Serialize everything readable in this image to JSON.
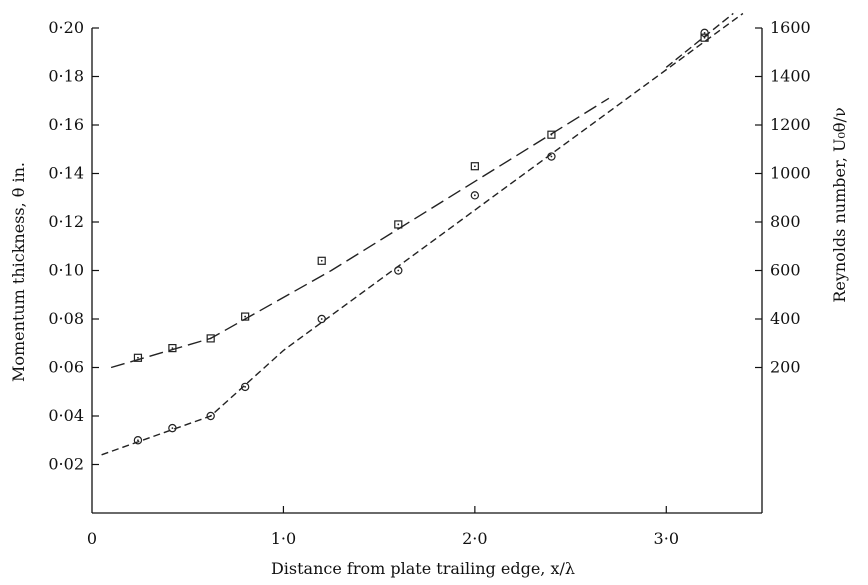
{
  "chart_data": {
    "type": "scatter",
    "title": "",
    "xlabel": "Distance from plate trailing edge, x/λ",
    "ylabel_left": "Momentum thickness, θ in.",
    "ylabel_right": "Reynolds number, U₀θ/ν",
    "xlim": [
      0,
      3.5
    ],
    "ylim": [
      0,
      0.2
    ],
    "ylim_right": [
      -400,
      1600
    ],
    "x_ticks": [
      {
        "value": 0,
        "label": "0"
      },
      {
        "value": 1.0,
        "label": "1·0"
      },
      {
        "value": 2.0,
        "label": "2·0"
      },
      {
        "value": 3.0,
        "label": "3·0"
      }
    ],
    "y_left_ticks": [
      {
        "value": 0.02,
        "label": "0·02"
      },
      {
        "value": 0.04,
        "label": "0·04"
      },
      {
        "value": 0.06,
        "label": "0·06"
      },
      {
        "value": 0.08,
        "label": "0·08"
      },
      {
        "value": 0.1,
        "label": "0·10"
      },
      {
        "value": 0.12,
        "label": "0·12"
      },
      {
        "value": 0.14,
        "label": "0·14"
      },
      {
        "value": 0.16,
        "label": "0·16"
      },
      {
        "value": 0.18,
        "label": "0·18"
      },
      {
        "value": 0.2,
        "label": "0·20"
      }
    ],
    "y_right_ticks": [
      {
        "value": 200,
        "label": "200"
      },
      {
        "value": 400,
        "label": "400"
      },
      {
        "value": 600,
        "label": "600"
      },
      {
        "value": 800,
        "label": "800"
      },
      {
        "value": 1000,
        "label": "1000"
      },
      {
        "value": 1200,
        "label": "1200"
      },
      {
        "value": 1400,
        "label": "1400"
      },
      {
        "value": 1600,
        "label": "1600"
      }
    ],
    "series": [
      {
        "marker": "square",
        "axis": "left",
        "x": [
          0.24,
          0.42,
          0.62,
          0.8,
          1.2,
          1.6,
          2.0,
          2.4,
          3.2
        ],
        "y": [
          0.064,
          0.068,
          0.072,
          0.081,
          0.104,
          0.119,
          0.143,
          0.156,
          0.196
        ],
        "fit_line": [
          [
            0.1,
            0.06
          ],
          [
            0.62,
            0.072
          ],
          [
            1.25,
            0.1
          ],
          [
            2.7,
            0.171
          ]
        ]
      },
      {
        "marker": "circle",
        "axis": "left",
        "x": [
          0.24,
          0.42,
          0.62,
          0.8,
          1.2,
          1.6,
          2.0,
          2.4,
          3.2
        ],
        "y": [
          0.03,
          0.035,
          0.04,
          0.052,
          0.08,
          0.1,
          0.131,
          0.147,
          0.198
        ],
        "fit_line": [
          [
            0.05,
            0.024
          ],
          [
            0.62,
            0.04
          ],
          [
            1.0,
            0.067
          ],
          [
            3.4,
            0.206
          ]
        ]
      }
    ],
    "extra_dashed_segment": [
      [
        3.0,
        0.1838
      ],
      [
        3.35,
        0.206
      ]
    ],
    "grid": false,
    "legend": "none"
  }
}
